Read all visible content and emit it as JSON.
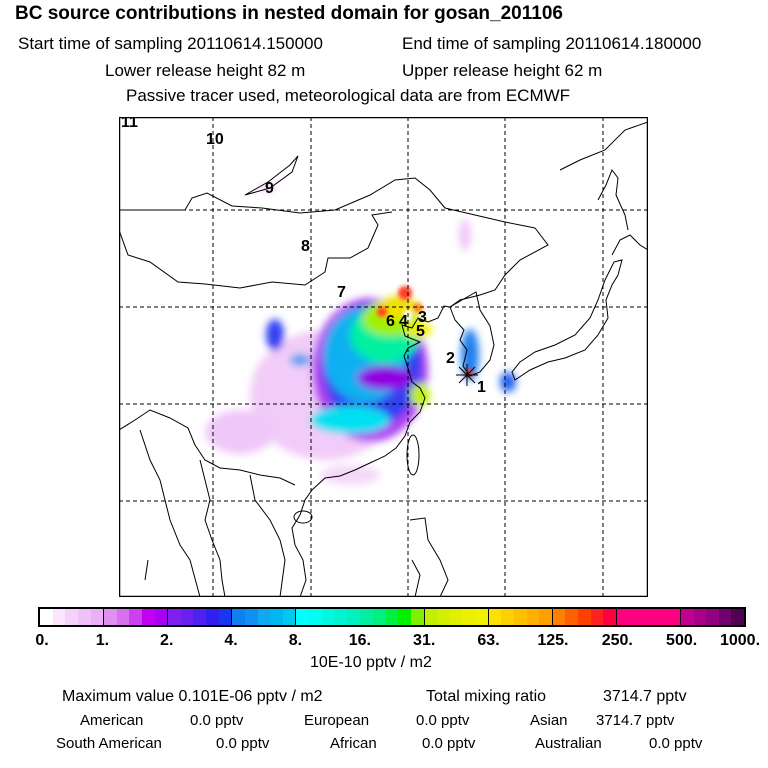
{
  "header": {
    "title": "BC  source contributions in nested domain for gosan_201106",
    "start_label": "Start time of sampling 20110614.150000",
    "end_label": "End time of sampling 20110614.180000",
    "lower_label": "Lower release height   82 m",
    "upper_label": "Upper release height   62 m",
    "tracer_note": "Passive tracer used, meteorological data are from ECMWF"
  },
  "map": {
    "trajectory_labels": [
      "1",
      "2",
      "3",
      "4",
      "5",
      "6",
      "7",
      "8",
      "9",
      "10",
      "11"
    ]
  },
  "colorbar": {
    "ticks": [
      "0.",
      "1.",
      "2.",
      "4.",
      "8.",
      "16.",
      "31.",
      "63.",
      "125.",
      "250.",
      "500.",
      "1000."
    ],
    "unit": "10E-10 pptv / m2",
    "segments": [
      [
        "#ffffff",
        "#fbe6fd",
        "#f6d2fb",
        "#f0c0f8",
        "#ebb0f6"
      ],
      [
        "#e090f0",
        "#d870f0",
        "#cc40f0",
        "#c000f0",
        "#a800f0"
      ],
      [
        "#8020f0",
        "#6a20f0",
        "#5020f0",
        "#3020f0",
        "#1838f0"
      ],
      [
        "#1080f0",
        "#1090f0",
        "#10a8f0",
        "#00b8f0",
        "#00c8f0"
      ],
      [
        "#00ffff",
        "#00fff0",
        "#00f8e0",
        "#00f4d0",
        "#00f0c0"
      ],
      [
        "#00f0a0",
        "#00f080",
        "#00f040",
        "#00f000",
        "#80f000"
      ],
      [
        "#c0f000",
        "#d0f000",
        "#e0f000",
        "#eaf000",
        "#f0f000"
      ],
      [
        "#ffe000",
        "#ffd000",
        "#ffc000",
        "#ffb000",
        "#ffa000"
      ],
      [
        "#ff8000",
        "#ff6000",
        "#ff4000",
        "#ff2020",
        "#ff0040"
      ],
      [
        "#ff0080",
        "#ff0080",
        "#ff0080",
        "#ff0080",
        "#ff0080"
      ],
      [
        "#c00090",
        "#a80088",
        "#900080",
        "#700070",
        "#500050"
      ]
    ]
  },
  "summary": {
    "max_label": "Maximum value  0.101E-06 pptv / m2",
    "total_label": "Total mixing ratio",
    "total_value": "3714.7 pptv",
    "american_label": "American",
    "american_value": "0.0 pptv",
    "european_label": "European",
    "european_value": "0.0 pptv",
    "asian_label": "Asian",
    "asian_value": "3714.7 pptv",
    "south_american_label": "South American",
    "south_american_value": "0.0 pptv",
    "african_label": "African",
    "african_value": "0.0 pptv",
    "australian_label": "Australian",
    "australian_value": "0.0 pptv"
  }
}
